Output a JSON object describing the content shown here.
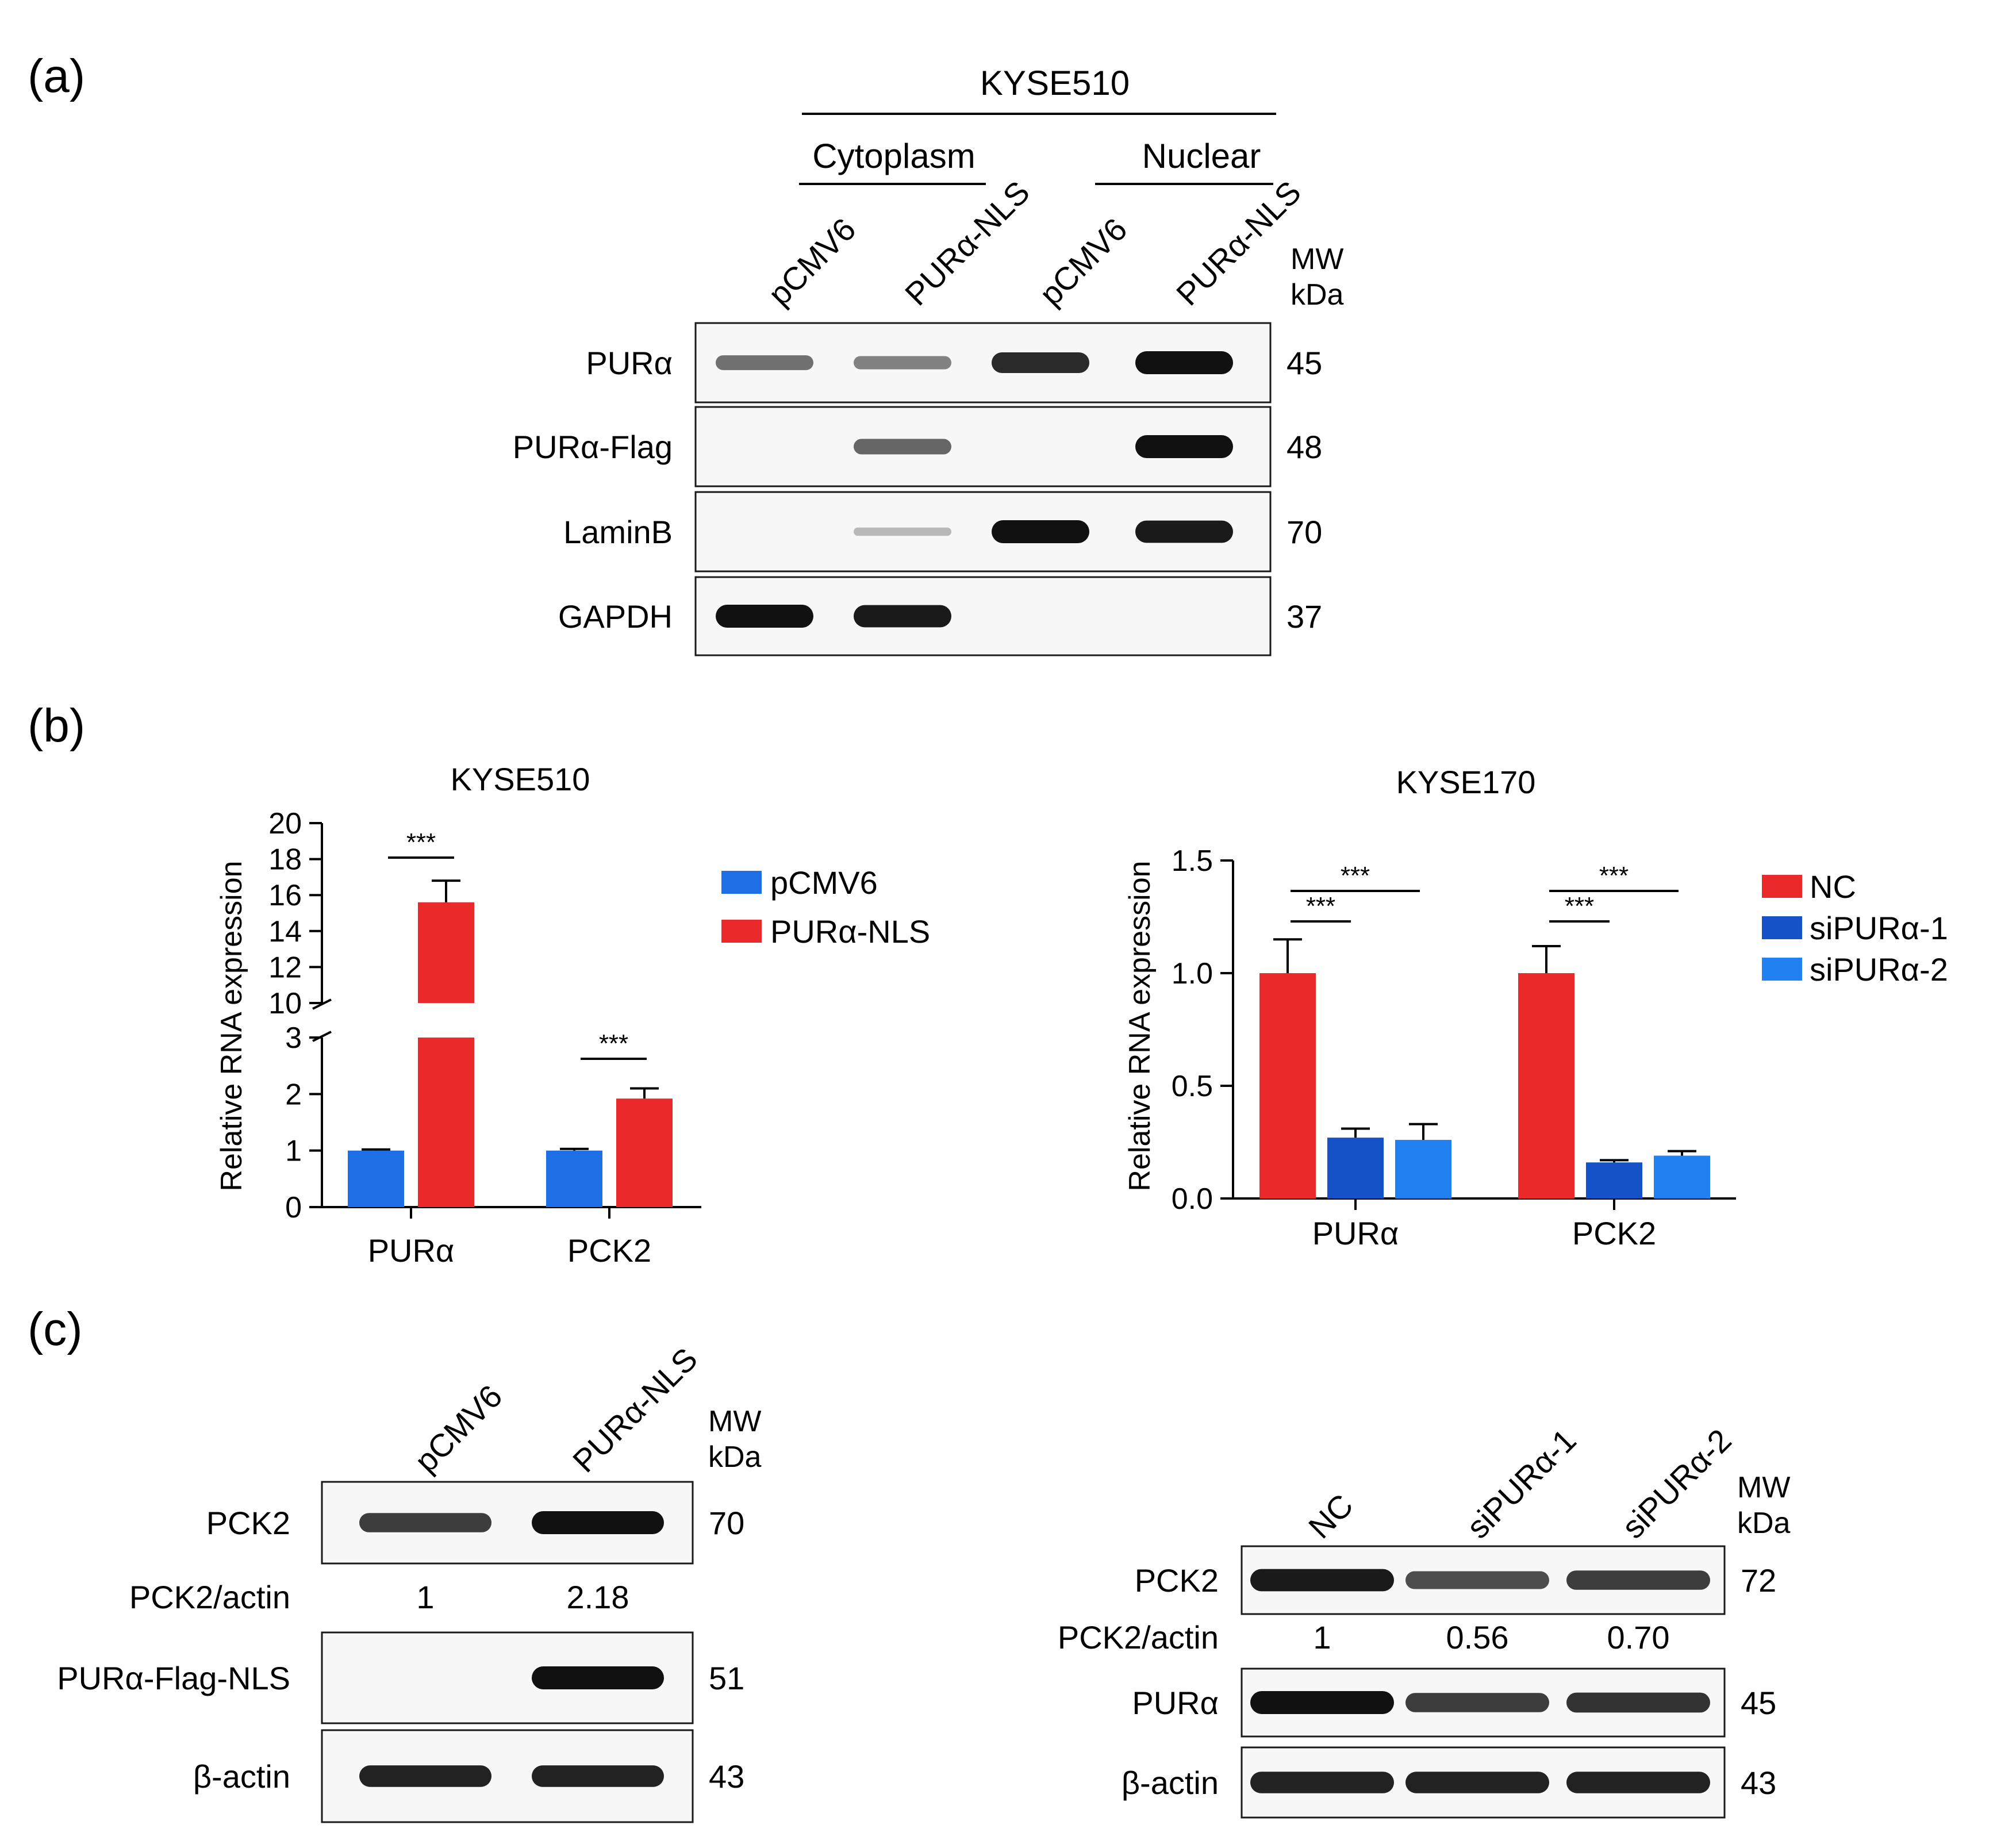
{
  "panel_labels": {
    "a": "(a)",
    "b": "(b)",
    "c": "(c)"
  },
  "panel_a": {
    "cell_line": "KYSE510",
    "fractions": [
      "Cytoplasm",
      "Nuclear"
    ],
    "lanes": [
      "pCMV6",
      "PURα-NLS",
      "pCMV6",
      "PURα-NLS"
    ],
    "mw_header": [
      "MW",
      "kDa"
    ],
    "rows": [
      {
        "label": "PURα",
        "mw": "45",
        "intensity": [
          0.45,
          0.35,
          0.85,
          1.0
        ]
      },
      {
        "label": "PURα-Flag",
        "mw": "48",
        "intensity": [
          0.0,
          0.5,
          0.0,
          1.0
        ]
      },
      {
        "label": "LaminB",
        "mw": "70",
        "intensity": [
          0.0,
          0.02,
          1.0,
          0.95
        ]
      },
      {
        "label": "GAPDH",
        "mw": "37",
        "intensity": [
          1.0,
          0.95,
          0.0,
          0.0
        ]
      }
    ]
  },
  "panel_b": {
    "ylabel": "Relative RNA expression",
    "sig_label": "***",
    "charts": [
      {
        "type": "bar",
        "title": "KYSE510",
        "categories": [
          "PURα",
          "PCK2"
        ],
        "series": [
          {
            "name": "pCMV6",
            "color": "#1e6fe6",
            "values": [
              1.0,
              1.0
            ],
            "errors": [
              0.02,
              0.03
            ]
          },
          {
            "name": "PURα-NLS",
            "color": "#ea2a2a",
            "values": [
              15.6,
              1.92
            ],
            "errors": [
              1.2,
              0.18
            ]
          }
        ],
        "y_broken": true,
        "y_ticks_lower": [
          "0",
          "1",
          "2",
          "3"
        ],
        "y_ticks_upper": [
          "10",
          "12",
          "14",
          "16",
          "18",
          "20"
        ],
        "ylim_lower": [
          0,
          3
        ],
        "ylim_upper": [
          10,
          20
        ]
      },
      {
        "type": "bar",
        "title": "KYSE170",
        "categories": [
          "PURα",
          "PCK2"
        ],
        "series": [
          {
            "name": "NC",
            "color": "#ea2a2a",
            "values": [
              1.0,
              1.0
            ],
            "errors": [
              0.15,
              0.12
            ]
          },
          {
            "name": "siPURα-1",
            "color": "#1652c7",
            "values": [
              0.27,
              0.16
            ],
            "errors": [
              0.04,
              0.01
            ]
          },
          {
            "name": "siPURα-2",
            "color": "#2281f0",
            "values": [
              0.26,
              0.19
            ],
            "errors": [
              0.07,
              0.02
            ]
          }
        ],
        "y_ticks": [
          "0.0",
          "0.5",
          "1.0",
          "1.5"
        ],
        "ylim": [
          0,
          1.5
        ]
      }
    ]
  },
  "panel_c_left": {
    "lanes": [
      "pCMV6",
      "PURα-NLS"
    ],
    "mw_header": [
      "MW",
      "kDa"
    ],
    "rows": [
      {
        "label": "PCK2",
        "mw": "70",
        "intensity": [
          0.75,
          1.0
        ]
      },
      {
        "label": "PURα-Flag-NLS",
        "mw": "51",
        "intensity": [
          0.0,
          1.0
        ]
      },
      {
        "label": "β-actin",
        "mw": "43",
        "intensity": [
          0.9,
          0.9
        ]
      }
    ],
    "ratio": {
      "label": "PCK2/actin",
      "values": [
        "1",
        "2.18"
      ]
    }
  },
  "panel_c_right": {
    "lanes": [
      "NC",
      "siPURα-1",
      "siPURα-2"
    ],
    "mw_header": [
      "MW",
      "kDa"
    ],
    "rows": [
      {
        "label": "PCK2",
        "mw": "72",
        "intensity": [
          0.95,
          0.65,
          0.75
        ]
      },
      {
        "label": "PURα",
        "mw": "45",
        "intensity": [
          1.0,
          0.75,
          0.8
        ]
      },
      {
        "label": "β-actin",
        "mw": "43",
        "intensity": [
          0.9,
          0.9,
          0.9
        ]
      }
    ],
    "ratio": {
      "label": "PCK2/actin",
      "values": [
        "1",
        "0.56",
        "0.70"
      ]
    }
  }
}
